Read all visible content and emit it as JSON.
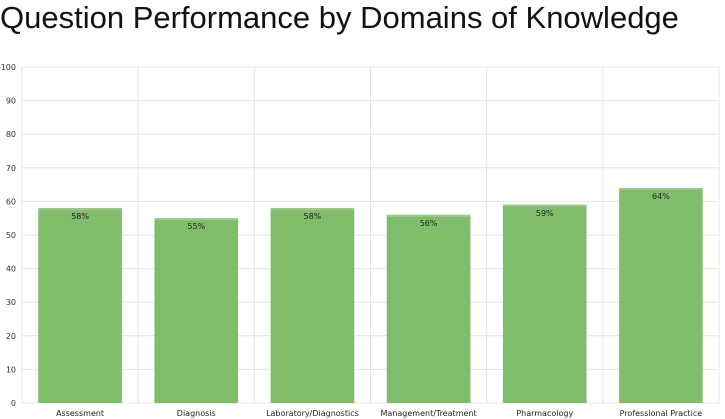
{
  "chart_data": {
    "type": "bar",
    "title": "Question Performance by Domains of Knowledge",
    "xlabel": "",
    "ylabel": "",
    "categories": [
      "Assessment",
      "Diagnosis",
      "Laboratory/Diagnostics",
      "Management/Treatment",
      "Pharmacology",
      "Professional Practice"
    ],
    "values": [
      58,
      55,
      58,
      56,
      59,
      64
    ],
    "data_labels": [
      "58%",
      "55%",
      "58%",
      "56%",
      "59%",
      "64%"
    ],
    "ylim": [
      0,
      100
    ],
    "yticks": [
      0,
      10,
      20,
      30,
      40,
      50,
      60,
      70,
      80,
      90,
      100
    ],
    "grid": true,
    "legend": "none",
    "colors": {
      "bar": "#80bd6a",
      "bar_top": "#9dc78b",
      "grid": "#e4e4e4"
    }
  }
}
